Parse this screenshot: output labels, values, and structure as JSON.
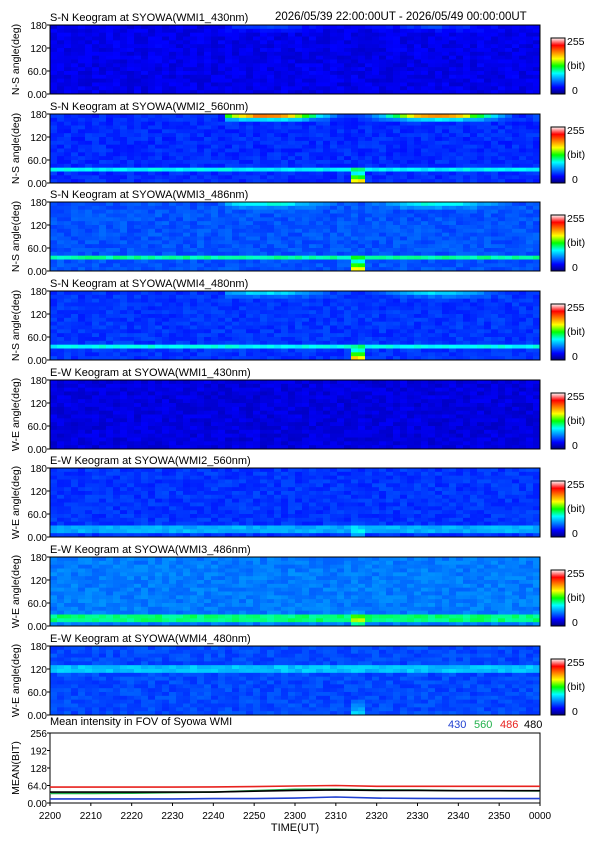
{
  "header": {
    "time_range": "2026/05/39 22:00:00UT - 2026/05/49 00:00:00UT"
  },
  "colorbar": {
    "max": "255",
    "unit": "(bit)",
    "min": "0"
  },
  "chart_data": [
    {
      "type": "heatmap",
      "title": "S-N Keogram at SYOWA(WMI1_430nm)",
      "ylabel": "N-S angle(deg)",
      "yticks": [
        "0.00",
        "60.0",
        "120",
        "180"
      ],
      "ylim": [
        0,
        180
      ],
      "features": {
        "base": 0.1,
        "glow": 0.1,
        "vspike": 0.0,
        "lines": []
      }
    },
    {
      "type": "heatmap",
      "title": "S-N Keogram at SYOWA(WMI2_560nm)",
      "ylabel": "N-S angle(deg)",
      "yticks": [
        "0.00",
        "60.0",
        "120",
        "180"
      ],
      "ylim": [
        0,
        180
      ],
      "features": {
        "base": 0.16,
        "glow": 0.8,
        "vspike": 0.55,
        "lines": [
          {
            "deg": 35,
            "strength": 0.2
          }
        ]
      }
    },
    {
      "type": "heatmap",
      "title": "S-N Keogram at SYOWA(WMI3_486nm)",
      "ylabel": "N-S angle(deg)",
      "yticks": [
        "0.00",
        "60.0",
        "120",
        "180"
      ],
      "ylim": [
        0,
        180
      ],
      "features": {
        "base": 0.2,
        "glow": 0.24,
        "vspike": 0.5,
        "lines": [
          {
            "deg": 35,
            "strength": 0.22
          }
        ]
      }
    },
    {
      "type": "heatmap",
      "title": "S-N Keogram at SYOWA(WMI4_480nm)",
      "ylabel": "N-S angle(deg)",
      "yticks": [
        "0.00",
        "60.0",
        "120",
        "180"
      ],
      "ylim": [
        0,
        180
      ],
      "features": {
        "base": 0.17,
        "glow": 0.22,
        "vspike": 0.55,
        "lines": [
          {
            "deg": 35,
            "strength": 0.2
          }
        ]
      }
    },
    {
      "type": "heatmap",
      "title": "E-W Keogram at SYOWA(WMI1_430nm)",
      "ylabel": "W-E angle(deg)",
      "yticks": [
        "0.00",
        "60.0",
        "120",
        "180"
      ],
      "ylim": [
        0,
        180
      ],
      "features": {
        "base": 0.09,
        "glow": 0.0,
        "vspike": 0.0,
        "lines": []
      }
    },
    {
      "type": "heatmap",
      "title": "E-W Keogram at SYOWA(WMI2_560nm)",
      "ylabel": "W-E angle(deg)",
      "yticks": [
        "0.00",
        "60.0",
        "120",
        "180"
      ],
      "ylim": [
        0,
        180
      ],
      "features": {
        "base": 0.17,
        "glow": 0.0,
        "vspike": 0.12,
        "lines": [
          {
            "deg": 20,
            "strength": 0.12
          }
        ]
      }
    },
    {
      "type": "heatmap",
      "title": "E-W Keogram at SYOWA(WMI3_486nm)",
      "ylabel": "W-E angle(deg)",
      "yticks": [
        "0.00",
        "60.0",
        "120",
        "180"
      ],
      "ylim": [
        0,
        180
      ],
      "features": {
        "base": 0.24,
        "glow": 0.0,
        "vspike": 0.22,
        "lines": [
          {
            "deg": 20,
            "strength": 0.2
          }
        ]
      }
    },
    {
      "type": "heatmap",
      "title": "E-W Keogram at SYOWA(WMI4_480nm)",
      "ylabel": "W-E angle(deg)",
      "yticks": [
        "0.00",
        "60.0",
        "120",
        "180"
      ],
      "ylim": [
        0,
        180
      ],
      "features": {
        "base": 0.19,
        "glow": 0.0,
        "vspike": 0.16,
        "lines": [
          {
            "deg": 120,
            "strength": 0.12
          }
        ]
      }
    },
    {
      "type": "line",
      "title": "Mean intensity in FOV of Syowa WMI",
      "xlabel": "TIME(UT)",
      "ylabel": "MEAN(BIT)",
      "xticks": [
        "2200",
        "2210",
        "2220",
        "2230",
        "2240",
        "2250",
        "2300",
        "2310",
        "2320",
        "2330",
        "2340",
        "2350",
        "0000"
      ],
      "yticks": [
        "0.00",
        "64.0",
        "128",
        "192",
        "256"
      ],
      "ylim": [
        0,
        256
      ],
      "x_minutes": [
        0,
        10,
        20,
        30,
        40,
        50,
        60,
        70,
        80,
        90,
        100,
        110,
        120
      ],
      "series": [
        {
          "name": "430",
          "color": "#1f3fd0",
          "values": [
            15,
            15,
            15,
            15,
            16,
            16,
            18,
            22,
            18,
            17,
            16,
            16,
            16
          ]
        },
        {
          "name": "560",
          "color": "#22b14c",
          "values": [
            35,
            35,
            36,
            38,
            40,
            45,
            50,
            50,
            48,
            47,
            45,
            45,
            44
          ]
        },
        {
          "name": "486",
          "color": "#e8221e",
          "values": [
            58,
            58,
            58,
            58,
            59,
            60,
            62,
            64,
            61,
            61,
            61,
            61,
            61
          ]
        },
        {
          "name": "480",
          "color": "#000000",
          "values": [
            40,
            40,
            40,
            40,
            40,
            43,
            46,
            48,
            46,
            46,
            45,
            45,
            45
          ]
        }
      ]
    }
  ]
}
